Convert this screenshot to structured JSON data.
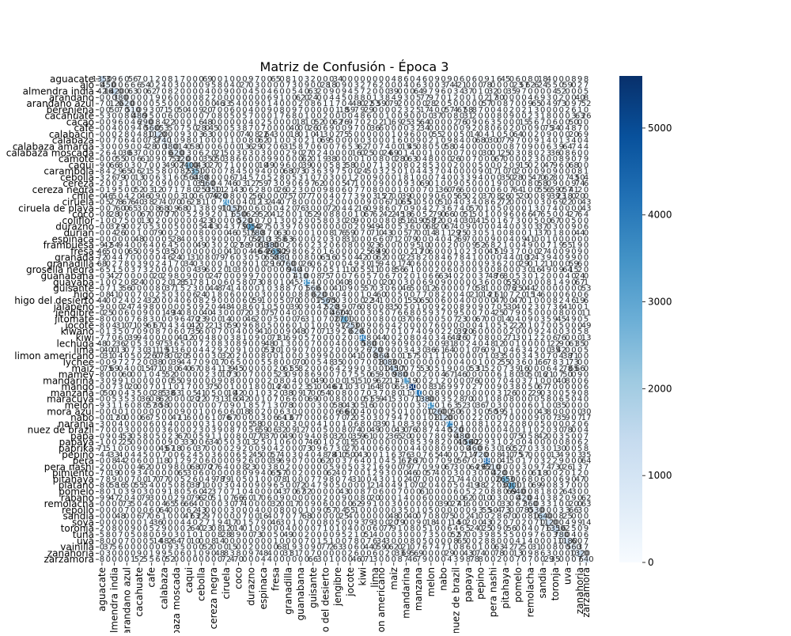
{
  "chart_data": {
    "type": "heatmap",
    "title": "Matriz de Confusión - Época 3",
    "xlabel": "",
    "ylabel": "",
    "labels": [
      "aguacate",
      "ajo",
      "almendra india",
      "arandano",
      "arandano azul",
      "berenjena",
      "cacahuate",
      "cacao",
      "cafe",
      "calabacin",
      "calabaza",
      "calabaza amarga",
      "calabaza moscada",
      "camote",
      "caqui",
      "carambola",
      "cebolla",
      "cereza",
      "cereza negra",
      "chile",
      "ciruela",
      "ciruela de playa",
      "coco",
      "coliflor",
      "durazno",
      "durian",
      "espinaca",
      "frambuesa",
      "fresa",
      "granada",
      "granadilla",
      "grosella negra",
      "guanabana",
      "guayaba",
      "guisante",
      "higo",
      "higo del desierto",
      "jalapeño",
      "jengibre",
      "jitomate",
      "jocote",
      "kiwano",
      "kiwi",
      "lechuga",
      "lima",
      "limon americano",
      "lychee",
      "maiz",
      "mamey",
      "mandarina",
      "mango",
      "manzana",
      "maracuya",
      "melon",
      "mora azul",
      "nabo",
      "naranja",
      "nuez de brazil",
      "papa",
      "papaya",
      "paprika",
      "pepino",
      "pera",
      "pera nashi",
      "pimiento",
      "pitahaya",
      "platano",
      "pomelo",
      "rabano",
      "remolacha",
      "repollo",
      "sandia",
      "soya",
      "toronja",
      "tuna",
      "uva",
      "vainilla",
      "zanahoria",
      "zarzamora"
    ],
    "shown_tick_labels": {
      "y": [
        "aguacate",
        "ajo",
        "almendra india",
        "arandano",
        "arandano azul",
        "berenjena",
        "cacahuate",
        "cacao",
        "cafe",
        "calabacin",
        "calabaza",
        "calabaza amarga",
        "calabaza moscada",
        "camote",
        "caqui",
        "carambola",
        "cebolla",
        "cereza",
        "cereza negra",
        "chile",
        "ciruela",
        "ciruela de playa",
        "coco",
        "coliflor",
        "durazno",
        "durian",
        "espinaca",
        "frambuesa",
        "fresa",
        "granada",
        "granadilla",
        "grosella negra",
        "guanabana",
        "guayaba",
        "guisante",
        "higo",
        "higo del desierto",
        "jalapeño",
        "jengibre",
        "jitomate",
        "jocote",
        "kiwano",
        "kiwi",
        "lechuga",
        "lima",
        "limon americano",
        "lychee",
        "maiz",
        "mamey",
        "mandarina",
        "mango",
        "manzana",
        "maracuya",
        "melon",
        "mora azul",
        "nabo",
        "naranja",
        "nuez de brazil",
        "papa",
        "papaya",
        "paprika",
        "pepino",
        "pera",
        "pera nashi",
        "pimiento",
        "pitahaya",
        "platano",
        "pomelo",
        "rabano",
        "remolacha",
        "repollo",
        "sandia",
        "soya",
        "toronja",
        "tuna",
        "uva",
        "vainilla",
        "zanahoria",
        "zarzamora"
      ],
      "x": [
        "aguacate",
        "almendra india",
        "arandano azul",
        "cacahuate",
        "cafe",
        "calabaza",
        "calabaza moscada",
        "caqui",
        "cebolla",
        "cereza negra",
        "ciruela",
        "coco",
        "durazno",
        "espinaca",
        "fresa",
        "granadilla",
        "guanabana",
        "guisante",
        "higo del desierto",
        "jengibre",
        "jocote",
        "kiwi",
        "lima",
        "limon americano",
        "maiz",
        "mandarina",
        "manzana",
        "melon",
        "nabo",
        "nuez de brazil",
        "papaya",
        "pepino",
        "pera nashi",
        "pitahaya",
        "pomelo",
        "remolacha",
        "sandia",
        "toronja",
        "uva",
        "zanahoria",
        "zarzamora"
      ]
    },
    "diagonal_values": [
      1350,
      450,
      1420,
      380,
      620,
      510,
      480,
      290,
      560,
      1120,
      740,
      380,
      620,
      320,
      2400,
      2350,
      480,
      560,
      350,
      420,
      3200,
      1150,
      650,
      520,
      3050,
      780,
      410,
      1380,
      2650,
      880,
      760,
      940,
      410,
      3350,
      560,
      620,
      1560,
      520,
      460,
      2700,
      1250,
      620,
      3900,
      580,
      720,
      860,
      1080,
      1450,
      980,
      3150,
      5600,
      4100,
      1380,
      3450,
      1260,
      1120,
      3750,
      520,
      480,
      1560,
      460,
      720,
      4380,
      510,
      420,
      2650,
      3000,
      640,
      420,
      360,
      530,
      1640,
      1120,
      1350,
      780,
      1180,
      560,
      1320,
      640
    ],
    "colorbar": {
      "min": 0,
      "max": 5600,
      "ticks": [
        0,
        1000,
        2000,
        3000,
        4000,
        5000
      ]
    },
    "colormap": "Blues",
    "annotations_visible": true
  }
}
